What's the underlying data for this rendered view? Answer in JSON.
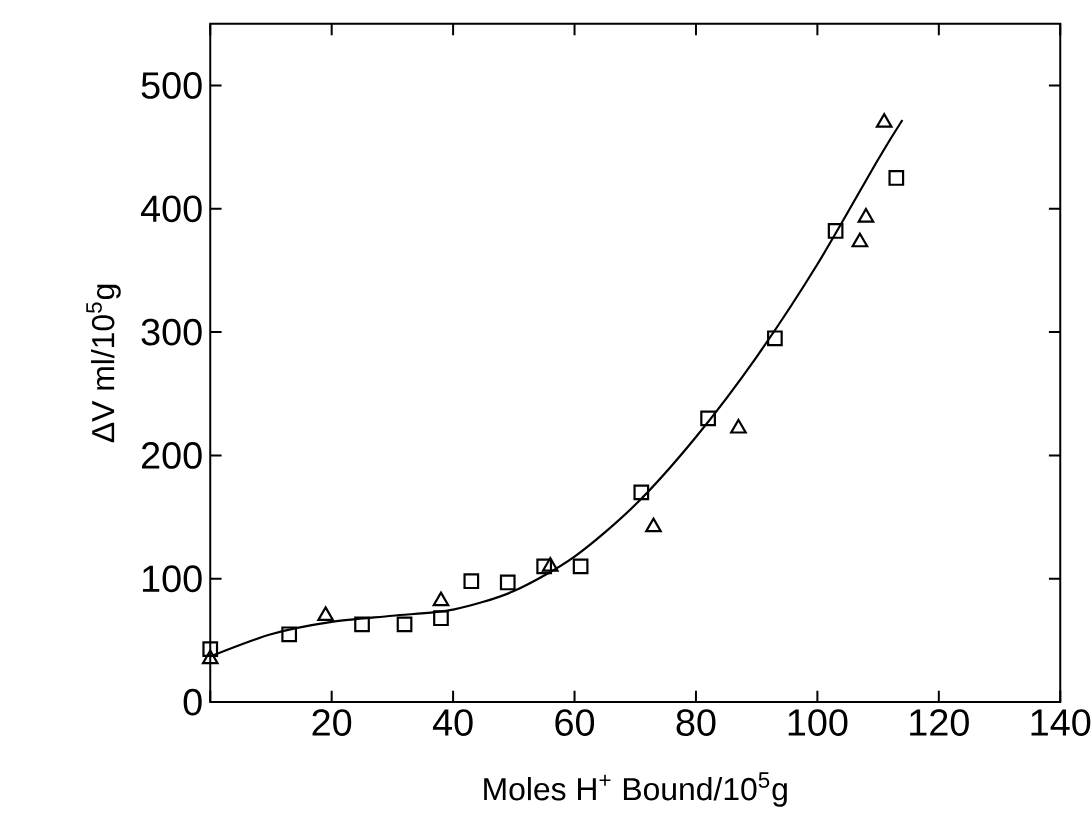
{
  "chart_data": {
    "type": "scatter",
    "xlabel": "Moles H$^{+}$ Bound/10$^{5}$g",
    "ylabel": "ΔV ml/10$^{5}$g",
    "xlim": [
      0,
      140
    ],
    "ylim": [
      0,
      550
    ],
    "xticks": [
      {
        "value": 0,
        "label": null
      },
      20,
      40,
      60,
      80,
      100,
      120,
      140
    ],
    "yticks": [
      0,
      100,
      200,
      300,
      400,
      500
    ],
    "grid": false,
    "series": [
      {
        "marker": "square",
        "color": "#000000",
        "x": [
          0,
          13,
          25,
          32,
          38,
          43,
          49,
          55,
          61,
          71,
          82,
          93,
          103,
          113
        ],
        "values": [
          43,
          55,
          63,
          63,
          68,
          98,
          97,
          110,
          110,
          170,
          230,
          295,
          382,
          425
        ]
      },
      {
        "marker": "triangle",
        "color": "#000000",
        "x": [
          0,
          19,
          38,
          56,
          73,
          87,
          107,
          108,
          111
        ],
        "values": [
          35,
          70,
          82,
          110,
          142,
          222,
          373,
          393,
          470
        ]
      },
      {
        "type": "line",
        "marker": "none",
        "line_style": "solid",
        "color": "#000000",
        "x": [
          0,
          10,
          20,
          30,
          40,
          50,
          60,
          70,
          80,
          90,
          100,
          110,
          114
        ],
        "values": [
          37,
          55,
          65,
          70,
          75,
          90,
          118,
          160,
          215,
          280,
          355,
          440,
          472
        ]
      }
    ]
  }
}
